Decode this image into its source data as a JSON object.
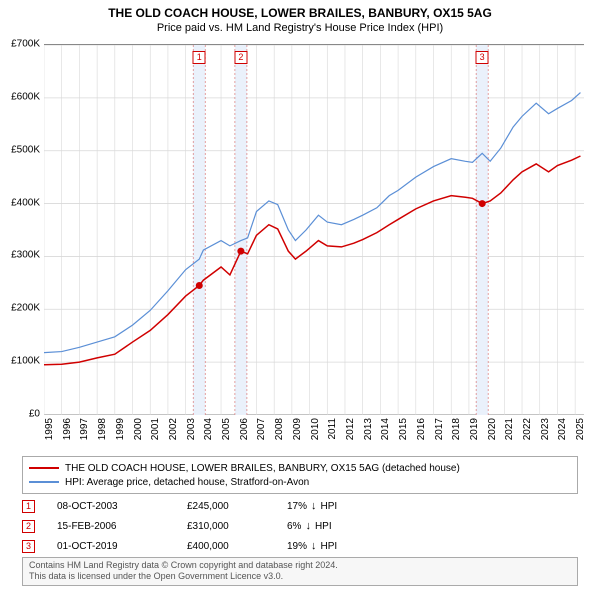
{
  "title": "THE OLD COACH HOUSE, LOWER BRAILES, BANBURY, OX15 5AG",
  "subtitle": "Price paid vs. HM Land Registry's House Price Index (HPI)",
  "chart": {
    "type": "line",
    "x_range": [
      1995,
      2025.5
    ],
    "y_range": [
      0,
      700
    ],
    "y_ticks": [
      0,
      100,
      200,
      300,
      400,
      500,
      600,
      700
    ],
    "y_tick_labels": [
      "£0",
      "£100K",
      "£200K",
      "£300K",
      "£400K",
      "£500K",
      "£600K",
      "£700K"
    ],
    "x_ticks": [
      1995,
      1996,
      1997,
      1998,
      1999,
      2000,
      2001,
      2002,
      2003,
      2004,
      2005,
      2006,
      2007,
      2008,
      2009,
      2010,
      2011,
      2012,
      2013,
      2014,
      2015,
      2016,
      2017,
      2018,
      2019,
      2020,
      2021,
      2022,
      2023,
      2024,
      2025
    ],
    "grid_color": "#d8d8d8",
    "background_color": "#ffffff",
    "series": [
      {
        "id": "property",
        "label": "THE OLD COACH HOUSE, LOWER BRAILES, BANBURY, OX15 5AG (detached house)",
        "color": "#d00000",
        "width": 1.5,
        "data": [
          [
            1995,
            95
          ],
          [
            1996,
            96
          ],
          [
            1997,
            100
          ],
          [
            1998,
            108
          ],
          [
            1999,
            115
          ],
          [
            2000,
            138
          ],
          [
            2001,
            160
          ],
          [
            2002,
            190
          ],
          [
            2003,
            225
          ],
          [
            2003.77,
            245
          ],
          [
            2004,
            255
          ],
          [
            2005,
            280
          ],
          [
            2005.5,
            265
          ],
          [
            2006.12,
            310
          ],
          [
            2006.5,
            305
          ],
          [
            2007,
            340
          ],
          [
            2007.7,
            360
          ],
          [
            2008.2,
            352
          ],
          [
            2008.8,
            310
          ],
          [
            2009.2,
            295
          ],
          [
            2009.8,
            310
          ],
          [
            2010.5,
            330
          ],
          [
            2011,
            320
          ],
          [
            2011.8,
            318
          ],
          [
            2012.5,
            325
          ],
          [
            2013,
            332
          ],
          [
            2013.8,
            345
          ],
          [
            2014.5,
            360
          ],
          [
            2015,
            370
          ],
          [
            2016,
            390
          ],
          [
            2017,
            405
          ],
          [
            2018,
            415
          ],
          [
            2018.8,
            412
          ],
          [
            2019.2,
            410
          ],
          [
            2019.75,
            400
          ],
          [
            2020.2,
            405
          ],
          [
            2020.8,
            420
          ],
          [
            2021.5,
            445
          ],
          [
            2022,
            460
          ],
          [
            2022.8,
            475
          ],
          [
            2023.5,
            460
          ],
          [
            2024,
            472
          ],
          [
            2024.8,
            482
          ],
          [
            2025.3,
            490
          ]
        ]
      },
      {
        "id": "hpi",
        "label": "HPI: Average price, detached house, Stratford-on-Avon",
        "color": "#5b8fd6",
        "width": 1.2,
        "data": [
          [
            1995,
            118
          ],
          [
            1996,
            120
          ],
          [
            1997,
            128
          ],
          [
            1998,
            138
          ],
          [
            1999,
            148
          ],
          [
            2000,
            170
          ],
          [
            2001,
            198
          ],
          [
            2002,
            235
          ],
          [
            2003,
            275
          ],
          [
            2003.77,
            295
          ],
          [
            2004,
            312
          ],
          [
            2005,
            330
          ],
          [
            2005.5,
            320
          ],
          [
            2006.12,
            330
          ],
          [
            2006.5,
            335
          ],
          [
            2007,
            385
          ],
          [
            2007.7,
            405
          ],
          [
            2008.2,
            398
          ],
          [
            2008.8,
            350
          ],
          [
            2009.2,
            330
          ],
          [
            2009.8,
            350
          ],
          [
            2010.5,
            378
          ],
          [
            2011,
            365
          ],
          [
            2011.8,
            360
          ],
          [
            2012.5,
            370
          ],
          [
            2013,
            378
          ],
          [
            2013.8,
            392
          ],
          [
            2014.5,
            415
          ],
          [
            2015,
            425
          ],
          [
            2016,
            450
          ],
          [
            2017,
            470
          ],
          [
            2018,
            485
          ],
          [
            2018.8,
            480
          ],
          [
            2019.2,
            478
          ],
          [
            2019.75,
            495
          ],
          [
            2020.2,
            480
          ],
          [
            2020.8,
            505
          ],
          [
            2021.5,
            545
          ],
          [
            2022,
            565
          ],
          [
            2022.8,
            590
          ],
          [
            2023.5,
            570
          ],
          [
            2024,
            580
          ],
          [
            2024.8,
            595
          ],
          [
            2025.3,
            610
          ]
        ]
      }
    ],
    "sale_bands": [
      {
        "x": 2003.77,
        "color": "#eaf1fb",
        "dash_color": "#d88"
      },
      {
        "x": 2006.12,
        "color": "#eaf1fb",
        "dash_color": "#d88"
      },
      {
        "x": 2019.75,
        "color": "#eaf1fb",
        "dash_color": "#d88"
      }
    ],
    "sale_points": [
      {
        "label": "1",
        "x": 2003.77,
        "y": 245
      },
      {
        "label": "2",
        "x": 2006.12,
        "y": 310
      },
      {
        "label": "3",
        "x": 2019.75,
        "y": 400
      }
    ]
  },
  "legend": {
    "items": [
      {
        "color": "#d00000",
        "text": "THE OLD COACH HOUSE, LOWER BRAILES, BANBURY, OX15 5AG (detached house)"
      },
      {
        "color": "#5b8fd6",
        "text": "HPI: Average price, detached house, Stratford-on-Avon"
      }
    ]
  },
  "sales": [
    {
      "marker": "1",
      "date": "08-OCT-2003",
      "price": "£245,000",
      "diff": "17%",
      "arrow": "↓",
      "suffix": "HPI"
    },
    {
      "marker": "2",
      "date": "15-FEB-2006",
      "price": "£310,000",
      "diff": "6%",
      "arrow": "↓",
      "suffix": "HPI"
    },
    {
      "marker": "3",
      "date": "01-OCT-2019",
      "price": "£400,000",
      "diff": "19%",
      "arrow": "↓",
      "suffix": "HPI"
    }
  ],
  "footer": {
    "line1": "Contains HM Land Registry data © Crown copyright and database right 2024.",
    "line2": "This data is licensed under the Open Government Licence v3.0."
  }
}
